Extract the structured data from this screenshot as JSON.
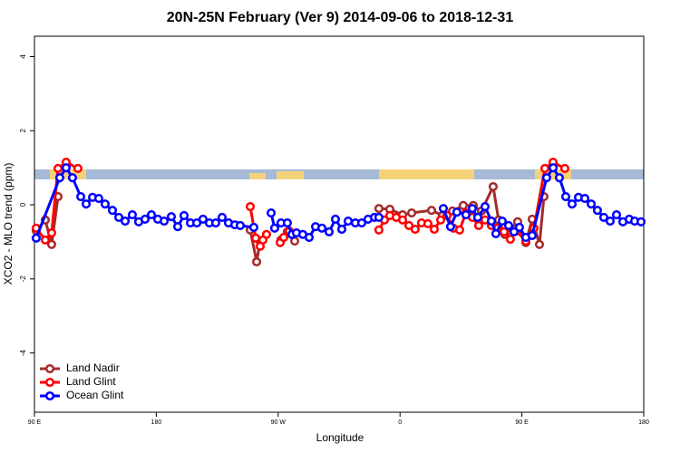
{
  "chart_data": {
    "type": "line",
    "title": "20N-25N February (Ver 9)   2014-09-06 to 2018-12-31",
    "x_label": "Longitude",
    "y_label": "XCO2 - MLO trend (ppm)",
    "xlim": [
      90,
      540
    ],
    "ylim": [
      -5.6,
      4.55
    ],
    "xticks": [
      {
        "value": 90,
        "label": "90 E"
      },
      180,
      {
        "value": 270,
        "label": "90 W"
      },
      {
        "value": 360,
        "label": "0"
      },
      {
        "value": 450,
        "label": "90 E"
      },
      {
        "value": 540,
        "label": "180"
      }
    ],
    "yticks": [
      -4,
      -2,
      0,
      2,
      4
    ],
    "legend": "bottom-left",
    "series": [
      {
        "name": "Land Nadir",
        "color": "#a52a2a",
        "x": [
          91.3,
          98,
          102.7,
          107.4,
          null,
          249.4,
          254.1,
          256.7,
          null,
          272.1,
          276.8,
          282.2,
          null,
          344.4,
          352.5,
          361.9,
          368.6,
          383.3,
          391.3,
          398.7,
          406.7,
          414.1,
          420.1,
          428.8,
          432.8,
          437.5,
          446.9,
          452.9,
          457.6,
          463,
          466.3
        ],
        "values": [
          -0.7,
          -0.41,
          -1.07,
          0.22,
          null,
          -0.68,
          -1.54,
          -0.98,
          null,
          -0.95,
          -0.73,
          -0.98,
          null,
          -0.1,
          -0.12,
          -0.27,
          -0.22,
          -0.15,
          -0.29,
          -0.17,
          -0.02,
          -0.02,
          -0.17,
          0.49,
          -0.41,
          -0.8,
          -0.46,
          -1.02,
          -0.39,
          -1.07,
          0.22
        ]
      },
      {
        "name": "Land Glint",
        "color": "#ff0000",
        "x": [
          91.3,
          98,
          102.7,
          107.4,
          113.4,
          122.1,
          null,
          249.4,
          253.4,
          256.7,
          258.7,
          261.4,
          null,
          271.5,
          274.1,
          278.2,
          null,
          344.4,
          348.5,
          352.5,
          357.2,
          361.9,
          366.6,
          371.2,
          375.9,
          380.6,
          385.3,
          390,
          394.7,
          399.4,
          404,
          408.7,
          413.4,
          418.1,
          422.8,
          427.5,
          432.2,
          436.9,
          441.5,
          446.2,
          452.9,
          458.9,
          467,
          473,
          481.7
        ],
        "values": [
          -0.63,
          -0.95,
          -0.76,
          0.98,
          1.15,
          0.98,
          null,
          -0.05,
          -0.9,
          -1.12,
          -0.95,
          -0.8,
          null,
          -1.02,
          -0.88,
          -0.71,
          null,
          -0.68,
          -0.41,
          -0.29,
          -0.34,
          -0.41,
          -0.56,
          -0.66,
          -0.49,
          -0.51,
          -0.66,
          -0.41,
          -0.29,
          -0.63,
          -0.68,
          -0.22,
          -0.34,
          -0.56,
          -0.41,
          -0.56,
          -0.63,
          -0.73,
          -0.93,
          -0.71,
          -0.98,
          -0.63,
          0.98,
          1.15,
          0.98
        ]
      },
      {
        "name": "Ocean Glint",
        "color": "#0000ff",
        "x": [
          91.3,
          108.7,
          113.4,
          118.1,
          124.2,
          128.2,
          132.9,
          137.5,
          142.2,
          147.6,
          152.3,
          157,
          162.3,
          167,
          171.7,
          176.4,
          181.1,
          185.8,
          191.1,
          195.8,
          200.5,
          205.2,
          209.9,
          214.5,
          219.2,
          223.9,
          228.6,
          233.3,
          238,
          242,
          252,
          null,
          264.8,
          267.4,
          272.1,
          276.8,
          280.2,
          283.5,
          288.2,
          292.9,
          297.6,
          302.3,
          307.6,
          312.3,
          317,
          321.7,
          327,
          331.7,
          336.4,
          341.1,
          344.4,
          null,
          392,
          397.3,
          402,
          408.7,
          413.4,
          417.4,
          422.8,
          427.5,
          430.8,
          435.5,
          440.2,
          444.2,
          448.2,
          452.9,
          457.6,
          468.3,
          473.1,
          477.7,
          482.4,
          487.1,
          491.8,
          496.5,
          501.2,
          505.8,
          510.5,
          515.2,
          519.9,
          524.6,
          529.3,
          533.3,
          538
        ],
        "values": [
          -0.9,
          0.73,
          1.0,
          0.73,
          0.22,
          0.02,
          0.2,
          0.17,
          0.02,
          -0.15,
          -0.34,
          -0.44,
          -0.27,
          -0.46,
          -0.39,
          -0.27,
          -0.39,
          -0.44,
          -0.32,
          -0.59,
          -0.29,
          -0.49,
          -0.49,
          -0.39,
          -0.49,
          -0.49,
          -0.34,
          -0.49,
          -0.54,
          -0.56,
          -0.61,
          null,
          -0.22,
          -0.63,
          -0.49,
          -0.49,
          -0.8,
          -0.76,
          -0.8,
          -0.88,
          -0.59,
          -0.63,
          -0.73,
          -0.39,
          -0.66,
          -0.44,
          -0.49,
          -0.49,
          -0.39,
          -0.34,
          -0.34,
          null,
          -0.1,
          -0.59,
          -0.2,
          -0.27,
          -0.1,
          -0.34,
          -0.05,
          -0.44,
          -0.78,
          -0.44,
          -0.56,
          -0.73,
          -0.61,
          -0.88,
          -0.83,
          0.73,
          1.0,
          0.73,
          0.22,
          0.02,
          0.2,
          0.17,
          0.02,
          -0.15,
          -0.34,
          -0.44,
          -0.27,
          -0.46,
          -0.39,
          -0.44,
          -0.46
        ]
      }
    ]
  }
}
